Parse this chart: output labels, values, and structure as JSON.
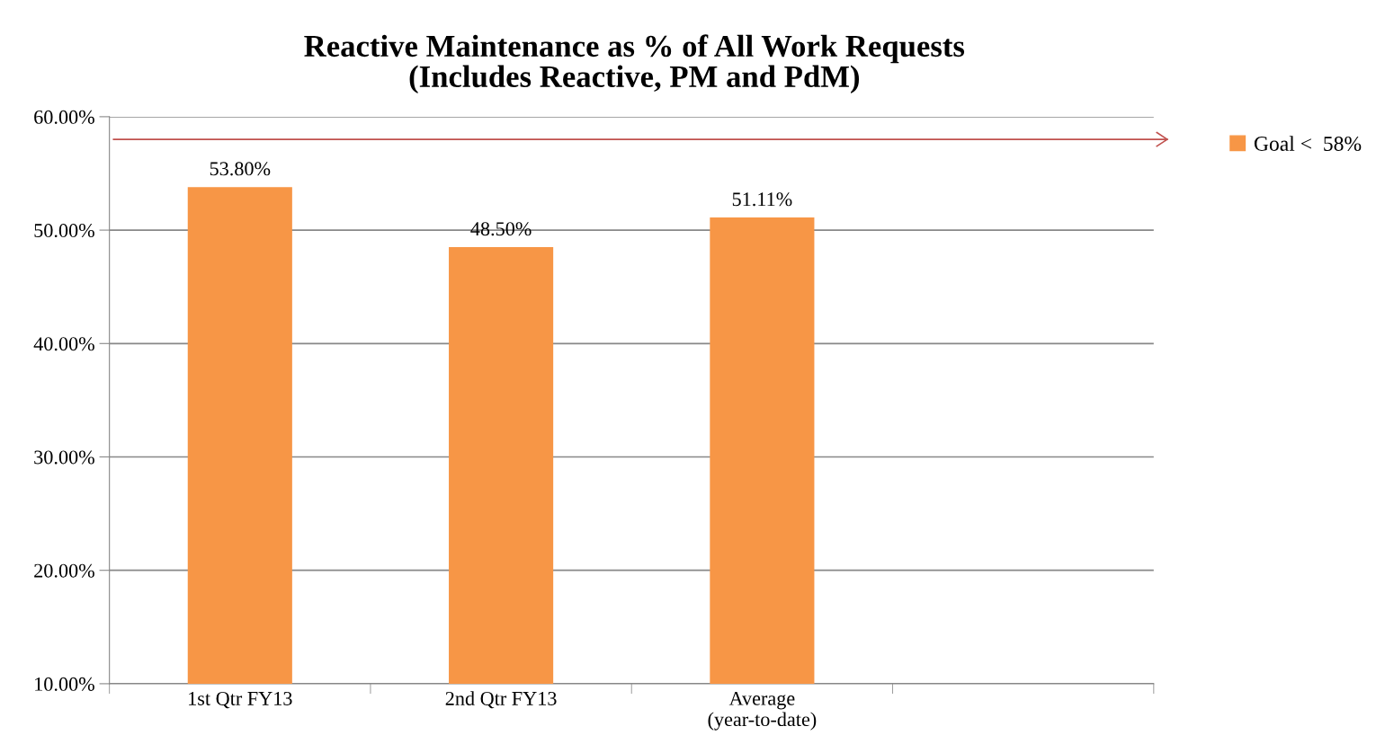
{
  "chart_data": {
    "type": "bar",
    "title": "Reactive Maintenance as % of All Work Requests\n(Includes Reactive, PM and PdM)",
    "categories": [
      "1st Qtr FY13",
      "2nd Qtr FY13",
      "Average\n(year-to-date)",
      null
    ],
    "series": [
      {
        "name": "Goal <  58%",
        "color": "#f79646",
        "values": [
          53.8,
          48.5,
          51.11,
          null
        ],
        "value_labels": [
          "53.80%",
          "48.50%",
          "51.11%",
          null
        ]
      }
    ],
    "ylim": [
      10,
      60
    ],
    "yticks": [
      {
        "value": 10,
        "label": "10.00%"
      },
      {
        "value": 20,
        "label": "20.00%"
      },
      {
        "value": 30,
        "label": "30.00%"
      },
      {
        "value": 40,
        "label": "40.00%"
      },
      {
        "value": 50,
        "label": "50.00%"
      },
      {
        "value": 60,
        "label": "60.00%"
      }
    ],
    "ref_lines": [
      {
        "axis": "y",
        "value": 58,
        "color": "#c0504d"
      }
    ],
    "grid": "y",
    "legend": "top right"
  }
}
